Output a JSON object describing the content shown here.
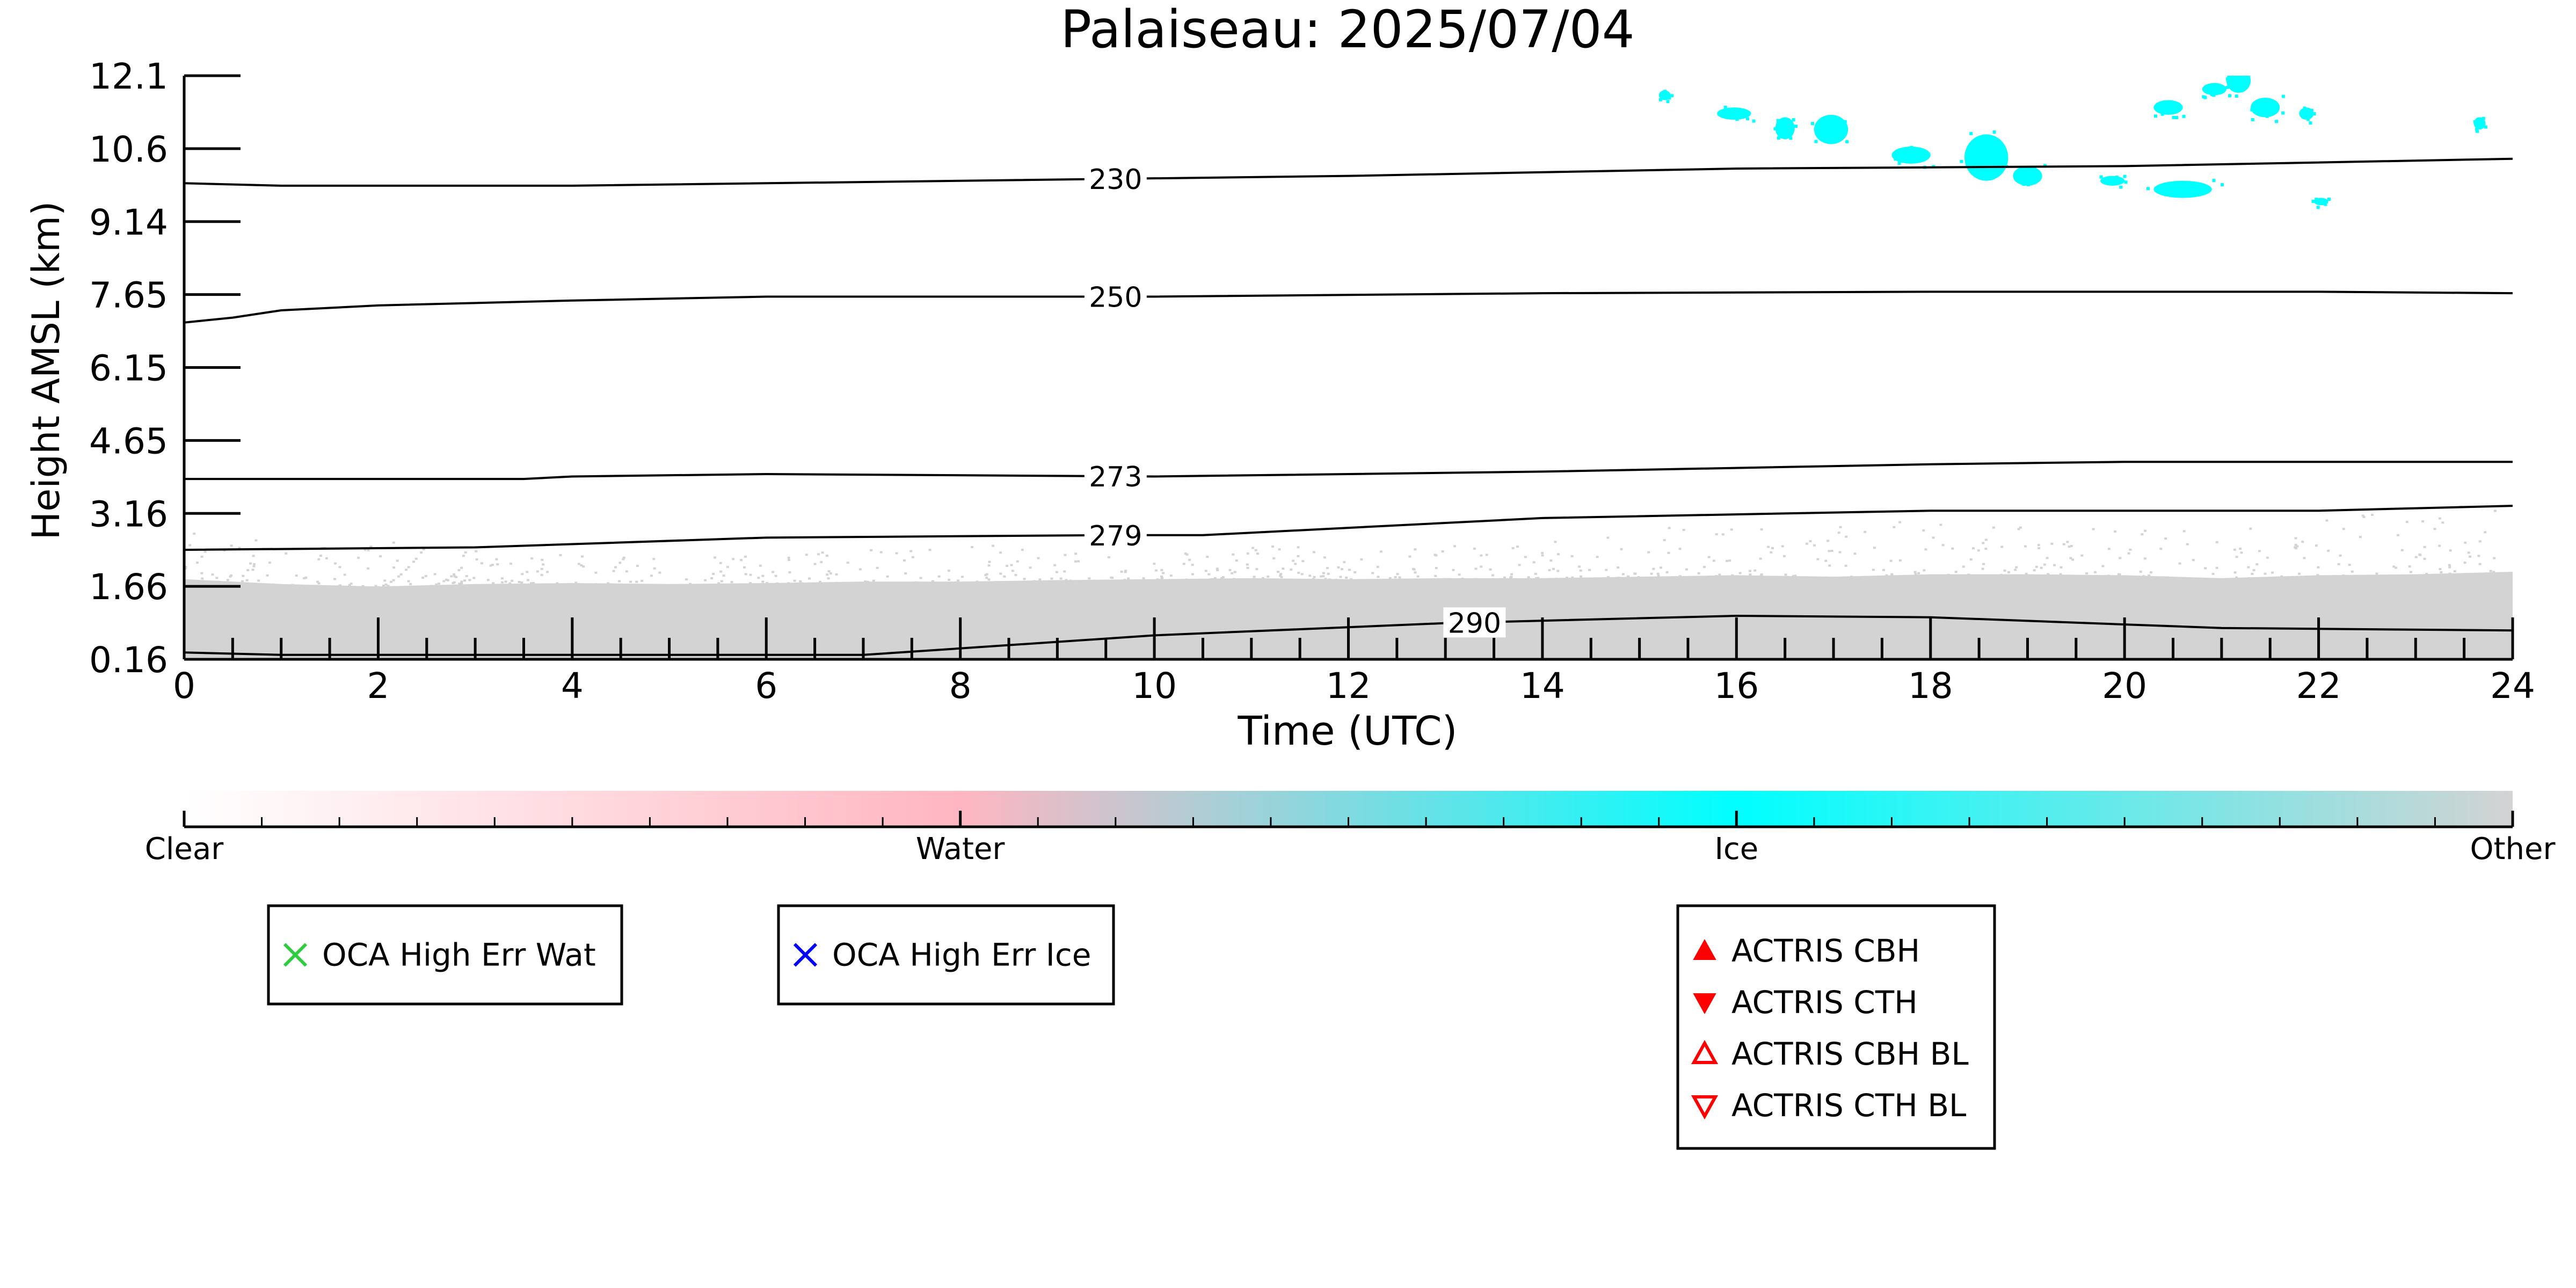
{
  "chart_data": {
    "type": "heatmap",
    "title": "Palaiseau: 2025/07/04",
    "xlabel": "Time (UTC)",
    "ylabel": "Height AMSL (km)",
    "xlim": [
      0,
      24
    ],
    "ylim": [
      0.16,
      12.1
    ],
    "x_ticks": [
      "0",
      "2",
      "4",
      "6",
      "8",
      "10",
      "12",
      "14",
      "16",
      "18",
      "20",
      "22",
      "24"
    ],
    "y_ticks": [
      "0.16",
      "1.66",
      "3.16",
      "4.65",
      "6.15",
      "7.65",
      "9.14",
      "10.6",
      "12.1"
    ],
    "grid": false,
    "colorbar": {
      "labels": [
        "Clear",
        "Water",
        "Ice",
        "Other"
      ],
      "colors": [
        "#ffffff",
        "#ffb6c1",
        "#00ffff",
        "#d3d3d3"
      ]
    },
    "class_colors": {
      "ice": "#00ffff",
      "other": "#d3d3d3"
    },
    "other_layer": {
      "x": [
        0,
        1,
        2,
        3,
        4,
        5,
        6,
        7,
        8,
        9,
        10,
        11,
        12,
        13,
        14,
        15,
        16,
        17,
        18,
        19,
        20,
        21,
        22,
        23,
        24
      ],
      "top": [
        1.8,
        1.7,
        1.65,
        1.7,
        1.72,
        1.7,
        1.72,
        1.75,
        1.75,
        1.78,
        1.8,
        1.82,
        1.8,
        1.82,
        1.82,
        1.85,
        1.88,
        1.85,
        1.9,
        1.9,
        1.88,
        1.82,
        1.88,
        1.9,
        1.95
      ],
      "scatter_top": [
        2.8,
        2.7,
        2.6,
        2.5,
        2.3,
        2.3,
        2.35,
        2.4,
        2.6,
        2.4,
        2.4,
        2.5,
        2.5,
        2.5,
        2.6,
        2.9,
        3.0,
        2.9,
        3.1,
        3.0,
        2.8,
        2.9,
        3.1,
        3.3,
        3.4
      ]
    },
    "ice_patches": [
      {
        "x": 15.2,
        "y": 11.6,
        "w": 0.12,
        "h": 0.2
      },
      {
        "x": 15.8,
        "y": 11.2,
        "w": 0.35,
        "h": 0.25
      },
      {
        "x": 16.4,
        "y": 10.8,
        "w": 0.2,
        "h": 0.45
      },
      {
        "x": 16.8,
        "y": 10.7,
        "w": 0.35,
        "h": 0.6
      },
      {
        "x": 17.6,
        "y": 10.3,
        "w": 0.4,
        "h": 0.35
      },
      {
        "x": 18.35,
        "y": 9.95,
        "w": 0.45,
        "h": 0.95
      },
      {
        "x": 18.85,
        "y": 9.85,
        "w": 0.3,
        "h": 0.4
      },
      {
        "x": 19.75,
        "y": 9.85,
        "w": 0.25,
        "h": 0.2
      },
      {
        "x": 20.3,
        "y": 9.6,
        "w": 0.6,
        "h": 0.35
      },
      {
        "x": 20.3,
        "y": 11.3,
        "w": 0.3,
        "h": 0.3
      },
      {
        "x": 20.8,
        "y": 11.7,
        "w": 0.25,
        "h": 0.25
      },
      {
        "x": 21.05,
        "y": 11.75,
        "w": 0.25,
        "h": 0.5
      },
      {
        "x": 21.3,
        "y": 11.25,
        "w": 0.3,
        "h": 0.4
      },
      {
        "x": 21.8,
        "y": 11.2,
        "w": 0.15,
        "h": 0.25
      },
      {
        "x": 21.95,
        "y": 9.45,
        "w": 0.15,
        "h": 0.15
      },
      {
        "x": 23.6,
        "y": 11.0,
        "w": 0.12,
        "h": 0.25
      }
    ],
    "contours": [
      {
        "label": "230",
        "label_x": 9.6,
        "x": [
          0,
          1,
          4,
          8,
          12,
          16,
          20,
          24
        ],
        "y": [
          9.9,
          9.85,
          9.85,
          9.95,
          10.05,
          10.2,
          10.25,
          10.4
        ]
      },
      {
        "label": "250",
        "label_x": 9.6,
        "x": [
          0,
          0.5,
          1,
          2,
          4,
          6,
          10,
          14,
          18,
          22,
          24
        ],
        "y": [
          7.05,
          7.15,
          7.3,
          7.4,
          7.5,
          7.58,
          7.58,
          7.65,
          7.68,
          7.68,
          7.65
        ]
      },
      {
        "label": "273",
        "label_x": 9.6,
        "x": [
          0,
          3.5,
          4,
          6,
          10,
          14,
          18,
          20,
          24
        ],
        "y": [
          3.85,
          3.85,
          3.9,
          3.95,
          3.9,
          4.0,
          4.15,
          4.2,
          4.2
        ]
      },
      {
        "label": "279",
        "label_x": 9.6,
        "x": [
          0,
          3,
          6,
          9.5,
          10.5,
          14,
          18,
          22,
          24
        ],
        "y": [
          2.4,
          2.45,
          2.65,
          2.7,
          2.7,
          3.05,
          3.2,
          3.2,
          3.3
        ]
      },
      {
        "label": "290",
        "label_x": 13.3,
        "x": [
          0,
          1,
          7,
          10,
          13,
          16,
          18,
          21,
          24
        ],
        "y": [
          0.3,
          0.25,
          0.25,
          0.65,
          0.9,
          1.05,
          1.02,
          0.8,
          0.75
        ]
      }
    ],
    "legends": [
      {
        "entries": [
          {
            "marker": "x",
            "color": "#2ecc40",
            "label": "OCA High Err Wat"
          }
        ]
      },
      {
        "entries": [
          {
            "marker": "x",
            "color": "#0000ff",
            "label": "OCA High Err Ice"
          }
        ]
      },
      {
        "entries": [
          {
            "marker": "triangle-up-filled",
            "color": "#ff0000",
            "label": "ACTRIS CBH"
          },
          {
            "marker": "triangle-down-filled",
            "color": "#ff0000",
            "label": "ACTRIS CTH"
          },
          {
            "marker": "triangle-up-open",
            "color": "#ff0000",
            "label": "ACTRIS CBH BL"
          },
          {
            "marker": "triangle-down-open",
            "color": "#ff0000",
            "label": "ACTRIS CTH BL"
          }
        ]
      }
    ]
  }
}
